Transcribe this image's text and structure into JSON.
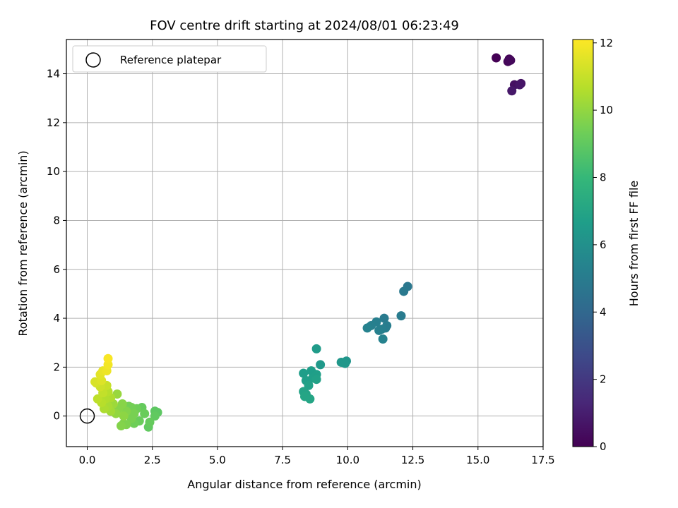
{
  "chart_data": {
    "type": "scatter",
    "title": "FOV centre drift starting at 2024/08/01 06:23:49",
    "xlabel": "Angular distance from reference (arcmin)",
    "ylabel": "Rotation from reference (arcmin)",
    "xlim": [
      -0.8,
      17.5
    ],
    "ylim": [
      -1.25,
      15.4
    ],
    "xticks": [
      "0.0",
      "2.5",
      "5.0",
      "7.5",
      "10.0",
      "12.5",
      "15.0",
      "17.5"
    ],
    "xtick_values": [
      0,
      2.5,
      5,
      7.5,
      10,
      12.5,
      15,
      17.5
    ],
    "yticks": [
      "0",
      "2",
      "4",
      "6",
      "8",
      "10",
      "12",
      "14"
    ],
    "ytick_values": [
      0,
      2,
      4,
      6,
      8,
      10,
      12,
      14
    ],
    "grid": true,
    "legend": {
      "label": "Reference platepar",
      "placement": "top-left"
    },
    "reference_point": {
      "x": 0,
      "y": 0
    },
    "colorbar": {
      "label": "Hours from first FF file",
      "min": 0,
      "max": 12.1,
      "ticks": [
        "0",
        "2",
        "4",
        "6",
        "8",
        "10",
        "12"
      ],
      "tick_values": [
        0,
        2,
        4,
        6,
        8,
        10,
        12
      ],
      "colormap": "viridis",
      "colors": [
        "#440154",
        "#482878",
        "#3e4989",
        "#31688e",
        "#26828e",
        "#1f9e89",
        "#35b779",
        "#6ece58",
        "#b5de2b",
        "#fde725"
      ]
    },
    "points": [
      {
        "x": 15.7,
        "y": 14.65,
        "c": 0.0
      },
      {
        "x": 16.2,
        "y": 14.6,
        "c": 0.1
      },
      {
        "x": 16.15,
        "y": 14.5,
        "c": 0.2
      },
      {
        "x": 16.25,
        "y": 14.55,
        "c": 0.25
      },
      {
        "x": 16.4,
        "y": 13.55,
        "c": 0.5
      },
      {
        "x": 16.65,
        "y": 13.6,
        "c": 0.6
      },
      {
        "x": 16.6,
        "y": 13.55,
        "c": 0.7
      },
      {
        "x": 16.3,
        "y": 13.3,
        "c": 0.8
      },
      {
        "x": 12.3,
        "y": 5.3,
        "c": 4.8
      },
      {
        "x": 12.15,
        "y": 5.1,
        "c": 4.9
      },
      {
        "x": 12.05,
        "y": 4.1,
        "c": 5.0
      },
      {
        "x": 11.4,
        "y": 4.0,
        "c": 5.0
      },
      {
        "x": 11.5,
        "y": 3.7,
        "c": 5.1
      },
      {
        "x": 11.45,
        "y": 3.6,
        "c": 5.1
      },
      {
        "x": 11.1,
        "y": 3.85,
        "c": 5.2
      },
      {
        "x": 11.3,
        "y": 3.55,
        "c": 5.2
      },
      {
        "x": 11.2,
        "y": 3.5,
        "c": 5.3
      },
      {
        "x": 10.9,
        "y": 3.7,
        "c": 5.3
      },
      {
        "x": 10.75,
        "y": 3.6,
        "c": 5.4
      },
      {
        "x": 11.35,
        "y": 3.15,
        "c": 5.4
      },
      {
        "x": 9.95,
        "y": 2.25,
        "c": 6.3
      },
      {
        "x": 9.75,
        "y": 2.2,
        "c": 6.4
      },
      {
        "x": 9.9,
        "y": 2.15,
        "c": 6.4
      },
      {
        "x": 8.95,
        "y": 2.1,
        "c": 6.5
      },
      {
        "x": 8.8,
        "y": 2.75,
        "c": 6.6
      },
      {
        "x": 8.3,
        "y": 1.75,
        "c": 6.7
      },
      {
        "x": 8.6,
        "y": 1.85,
        "c": 6.7
      },
      {
        "x": 8.8,
        "y": 1.7,
        "c": 6.8
      },
      {
        "x": 8.4,
        "y": 1.45,
        "c": 6.8
      },
      {
        "x": 8.65,
        "y": 1.55,
        "c": 6.8
      },
      {
        "x": 8.8,
        "y": 1.5,
        "c": 6.9
      },
      {
        "x": 8.5,
        "y": 1.25,
        "c": 6.9
      },
      {
        "x": 8.3,
        "y": 1.0,
        "c": 7.0
      },
      {
        "x": 8.4,
        "y": 0.9,
        "c": 7.0
      },
      {
        "x": 8.35,
        "y": 0.8,
        "c": 7.1
      },
      {
        "x": 8.55,
        "y": 0.7,
        "c": 7.1
      },
      {
        "x": 2.7,
        "y": 0.15,
        "c": 9.0
      },
      {
        "x": 2.6,
        "y": 0.2,
        "c": 9.0
      },
      {
        "x": 2.6,
        "y": 0.0,
        "c": 9.1
      },
      {
        "x": 2.35,
        "y": -0.45,
        "c": 9.1
      },
      {
        "x": 2.4,
        "y": -0.25,
        "c": 9.2
      },
      {
        "x": 2.1,
        "y": 0.35,
        "c": 9.2
      },
      {
        "x": 2.2,
        "y": 0.1,
        "c": 9.3
      },
      {
        "x": 2.0,
        "y": -0.2,
        "c": 9.3
      },
      {
        "x": 1.8,
        "y": -0.3,
        "c": 9.4
      },
      {
        "x": 1.9,
        "y": 0.3,
        "c": 9.4
      },
      {
        "x": 1.7,
        "y": 0.35,
        "c": 9.5
      },
      {
        "x": 1.6,
        "y": 0.4,
        "c": 9.5
      },
      {
        "x": 1.8,
        "y": 0.1,
        "c": 9.6
      },
      {
        "x": 1.7,
        "y": -0.1,
        "c": 9.6
      },
      {
        "x": 1.5,
        "y": -0.35,
        "c": 9.7
      },
      {
        "x": 1.4,
        "y": -0.3,
        "c": 9.7
      },
      {
        "x": 1.3,
        "y": -0.4,
        "c": 9.8
      },
      {
        "x": 1.5,
        "y": 0.2,
        "c": 9.8
      },
      {
        "x": 1.35,
        "y": 0.5,
        "c": 9.9
      },
      {
        "x": 1.2,
        "y": 0.3,
        "c": 9.9
      },
      {
        "x": 1.4,
        "y": 0.0,
        "c": 10.0
      },
      {
        "x": 1.1,
        "y": 0.1,
        "c": 10.1
      },
      {
        "x": 1.15,
        "y": 0.9,
        "c": 10.2
      },
      {
        "x": 1.0,
        "y": 0.5,
        "c": 10.3
      },
      {
        "x": 0.9,
        "y": 0.2,
        "c": 10.4
      },
      {
        "x": 0.8,
        "y": 0.4,
        "c": 10.5
      },
      {
        "x": 0.65,
        "y": 0.3,
        "c": 10.6
      },
      {
        "x": 0.9,
        "y": 0.75,
        "c": 10.6
      },
      {
        "x": 0.7,
        "y": 0.7,
        "c": 10.7
      },
      {
        "x": 0.55,
        "y": 0.55,
        "c": 10.8
      },
      {
        "x": 0.8,
        "y": 1.0,
        "c": 10.8
      },
      {
        "x": 0.4,
        "y": 0.7,
        "c": 10.9
      },
      {
        "x": 0.6,
        "y": 0.95,
        "c": 11.0
      },
      {
        "x": 0.75,
        "y": 1.25,
        "c": 11.1
      },
      {
        "x": 0.5,
        "y": 1.2,
        "c": 11.2
      },
      {
        "x": 0.35,
        "y": 1.35,
        "c": 11.3
      },
      {
        "x": 0.3,
        "y": 1.4,
        "c": 11.4
      },
      {
        "x": 0.55,
        "y": 1.45,
        "c": 11.5
      },
      {
        "x": 0.5,
        "y": 1.7,
        "c": 11.6
      },
      {
        "x": 0.6,
        "y": 1.85,
        "c": 11.7
      },
      {
        "x": 0.75,
        "y": 1.85,
        "c": 11.8
      },
      {
        "x": 0.8,
        "y": 2.1,
        "c": 11.9
      },
      {
        "x": 0.8,
        "y": 2.35,
        "c": 12.0
      }
    ]
  }
}
